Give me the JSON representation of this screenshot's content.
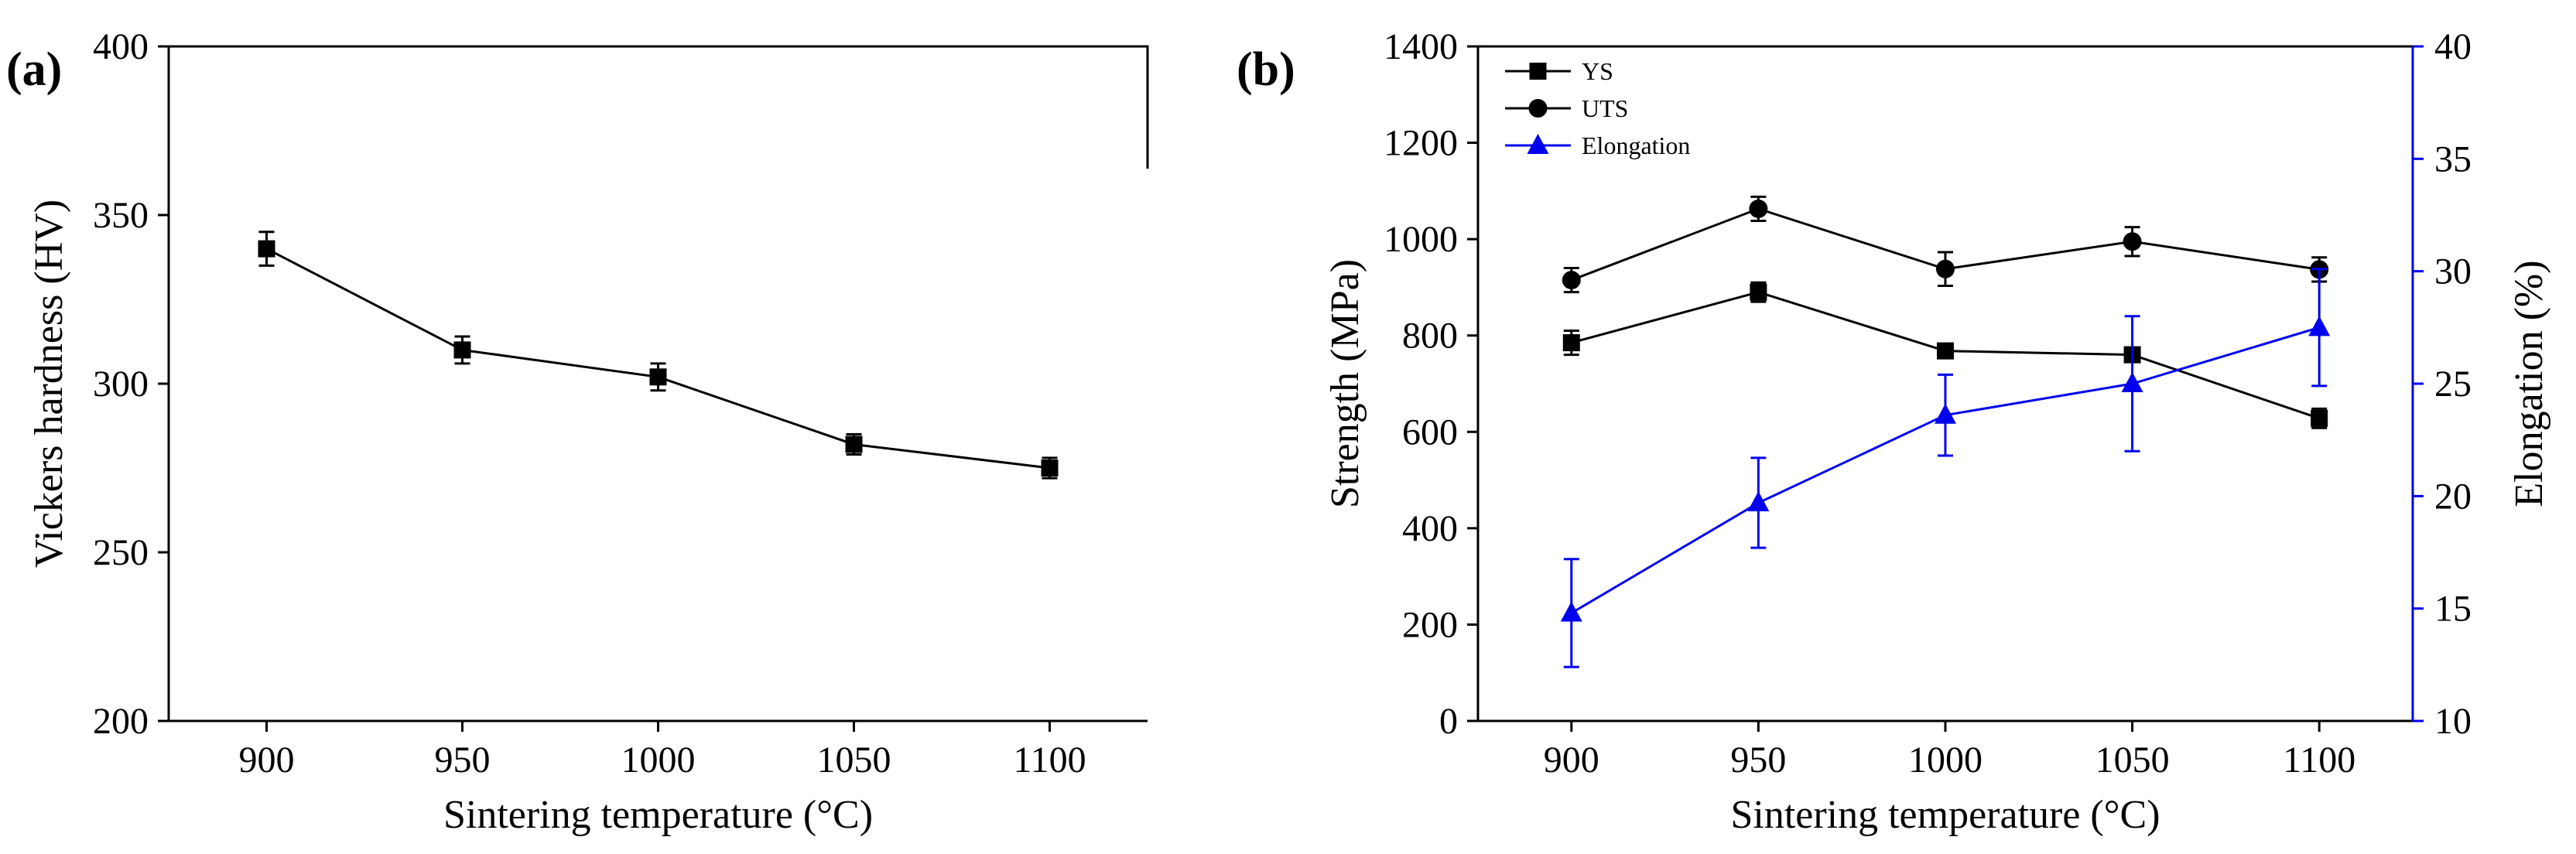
{
  "chart_data": [
    {
      "type": "line",
      "panel_label": "(a)",
      "xlabel": "Sintering temperature (°C)",
      "ylabel": "Vickers hardness (HV)",
      "x": [
        900,
        950,
        1000,
        1050,
        1100
      ],
      "xticks": [
        "900",
        "950",
        "1000",
        "1050",
        "1100"
      ],
      "xlim": [
        875,
        1125
      ],
      "ylim": [
        200,
        400
      ],
      "yticks": [
        "200",
        "250",
        "300",
        "350",
        "400"
      ],
      "series": [
        {
          "name": "Vickers hardness",
          "marker": "square",
          "color": "#000000",
          "values": [
            340,
            310,
            302,
            282,
            275
          ],
          "errors": [
            5,
            4,
            4,
            3,
            3
          ]
        }
      ]
    },
    {
      "type": "line",
      "panel_label": "(b)",
      "xlabel": "Sintering temperature (°C)",
      "ylabel": "Strength (MPa)",
      "y2label": "Elongation (%)",
      "x": [
        900,
        950,
        1000,
        1050,
        1100
      ],
      "xticks": [
        "900",
        "950",
        "1000",
        "1050",
        "1100"
      ],
      "xlim": [
        875,
        1125
      ],
      "ylim": [
        0,
        1400
      ],
      "yticks": [
        "0",
        "200",
        "400",
        "600",
        "800",
        "1000",
        "1200",
        "1400"
      ],
      "y2lim": [
        10,
        40
      ],
      "y2ticks": [
        "10",
        "15",
        "20",
        "25",
        "30",
        "35",
        "40"
      ],
      "legend_position": "top-left",
      "series": [
        {
          "name": "YS",
          "marker": "square",
          "color": "#000000",
          "axis": "left",
          "values": [
            785,
            890,
            768,
            760,
            628
          ],
          "errors": [
            25,
            20,
            15,
            15,
            20
          ]
        },
        {
          "name": "UTS",
          "marker": "circle",
          "color": "#000000",
          "axis": "left",
          "values": [
            915,
            1063,
            938,
            995,
            937
          ],
          "errors": [
            25,
            25,
            35,
            30,
            25
          ]
        },
        {
          "name": "Elongation",
          "marker": "triangle",
          "color": "#0000ee",
          "axis": "right",
          "values": [
            14.8,
            19.7,
            23.6,
            25.0,
            27.5
          ],
          "errors": [
            2.4,
            2.0,
            1.8,
            3.0,
            2.6
          ]
        }
      ]
    }
  ]
}
